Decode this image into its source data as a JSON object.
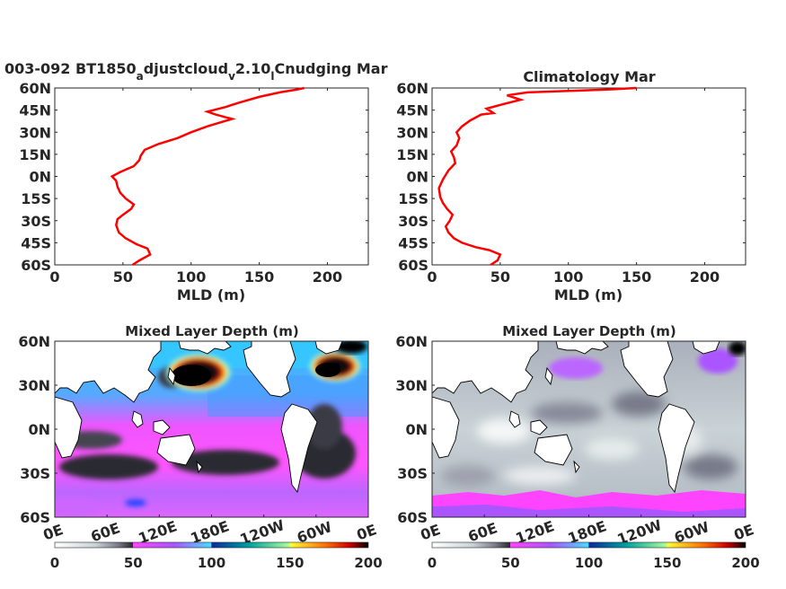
{
  "chart_data": [
    {
      "type": "line",
      "title_main": "003-092 BT1850",
      "title_sub1": "a",
      "title_part2": "djustcloud",
      "title_sub2": "v",
      "title_part3": "2.10",
      "title_sub3": "l",
      "title_part4": "Cnudging Mar",
      "xlabel": "MLD (m)",
      "ylabel": "",
      "xlim": [
        0,
        230
      ],
      "ylim": [
        -60,
        60
      ],
      "xticks": [
        "0",
        "50",
        "100",
        "150",
        "200"
      ],
      "yticks": [
        "60S",
        "45S",
        "30S",
        "15S",
        "0N",
        "15N",
        "30N",
        "45N",
        "60N"
      ],
      "line_color": "#ff0000",
      "series": [
        {
          "x": [
            57,
            62,
            70,
            68,
            60,
            52,
            47,
            45,
            46,
            50,
            56,
            58,
            52,
            48,
            46,
            45,
            42,
            48,
            58,
            62,
            63,
            66,
            76,
            90,
            100,
            112,
            130,
            118,
            112,
            125,
            135,
            150,
            165,
            178,
            183
          ],
          "y": [
            -60,
            -57,
            -53,
            -49,
            -46,
            -42,
            -38,
            -33,
            -29,
            -26,
            -22,
            -19,
            -15,
            -11,
            -7,
            -3,
            0,
            3,
            7,
            11,
            14,
            18,
            22,
            26,
            30,
            34,
            39,
            42,
            44,
            47,
            50,
            54,
            57,
            59,
            60
          ]
        }
      ]
    },
    {
      "type": "line",
      "title": "Climatology Mar",
      "xlabel": "MLD (m)",
      "ylabel": "",
      "xlim": [
        0,
        230
      ],
      "ylim": [
        -60,
        60
      ],
      "xticks": [
        "0",
        "50",
        "100",
        "150",
        "200"
      ],
      "yticks": [
        "60S",
        "45S",
        "30S",
        "15S",
        "0N",
        "15N",
        "30N",
        "45N",
        "60N"
      ],
      "line_color": "#ff0000",
      "series": [
        {
          "x": [
            43,
            48,
            50,
            42,
            32,
            22,
            16,
            12,
            10,
            13,
            15,
            11,
            8,
            6,
            5,
            8,
            12,
            17,
            16,
            14,
            18,
            20,
            18,
            22,
            28,
            36,
            45,
            40,
            52,
            65,
            55,
            70,
            100,
            130,
            150
          ],
          "y": [
            -60,
            -57,
            -53,
            -50,
            -48,
            -45,
            -42,
            -38,
            -34,
            -30,
            -26,
            -22,
            -18,
            -14,
            -8,
            -2,
            4,
            9,
            13,
            17,
            21,
            26,
            30,
            34,
            38,
            42,
            43,
            46,
            49,
            52,
            55,
            57,
            58,
            59,
            60
          ]
        }
      ]
    },
    {
      "type": "heatmap",
      "title": "Mixed Layer Depth (m)",
      "xticks": [
        "0E",
        "60E",
        "120E",
        "180E",
        "120W",
        "60W",
        "0E"
      ],
      "yticks": [
        "60S",
        "30S",
        "0N",
        "30N",
        "60N"
      ],
      "lat_range": [
        -60,
        60
      ],
      "lon_range": [
        0,
        360
      ],
      "colorbar_ticks": [
        "0",
        "50",
        "100",
        "150",
        "200"
      ],
      "colorbar_range": [
        0,
        200
      ]
    },
    {
      "type": "heatmap",
      "title": "Mixed Layer Depth (m)",
      "xticks": [
        "0E",
        "60E",
        "120E",
        "180E",
        "120W",
        "60W",
        "0E"
      ],
      "yticks": [
        "60S",
        "30S",
        "0N",
        "30N",
        "60N"
      ],
      "lat_range": [
        -60,
        60
      ],
      "lon_range": [
        0,
        360
      ],
      "colorbar_ticks": [
        "0",
        "50",
        "100",
        "150",
        "200"
      ],
      "colorbar_range": [
        0,
        200
      ]
    }
  ],
  "colormap": [
    "#ffffff",
    "#c8d2d6",
    "#8a8a9a",
    "#3a3a42",
    "#ff44ff",
    "#8866ff",
    "#44ddff",
    "#00b0a0",
    "#ffff33",
    "#ff6600",
    "#ff0000",
    "#000000"
  ]
}
